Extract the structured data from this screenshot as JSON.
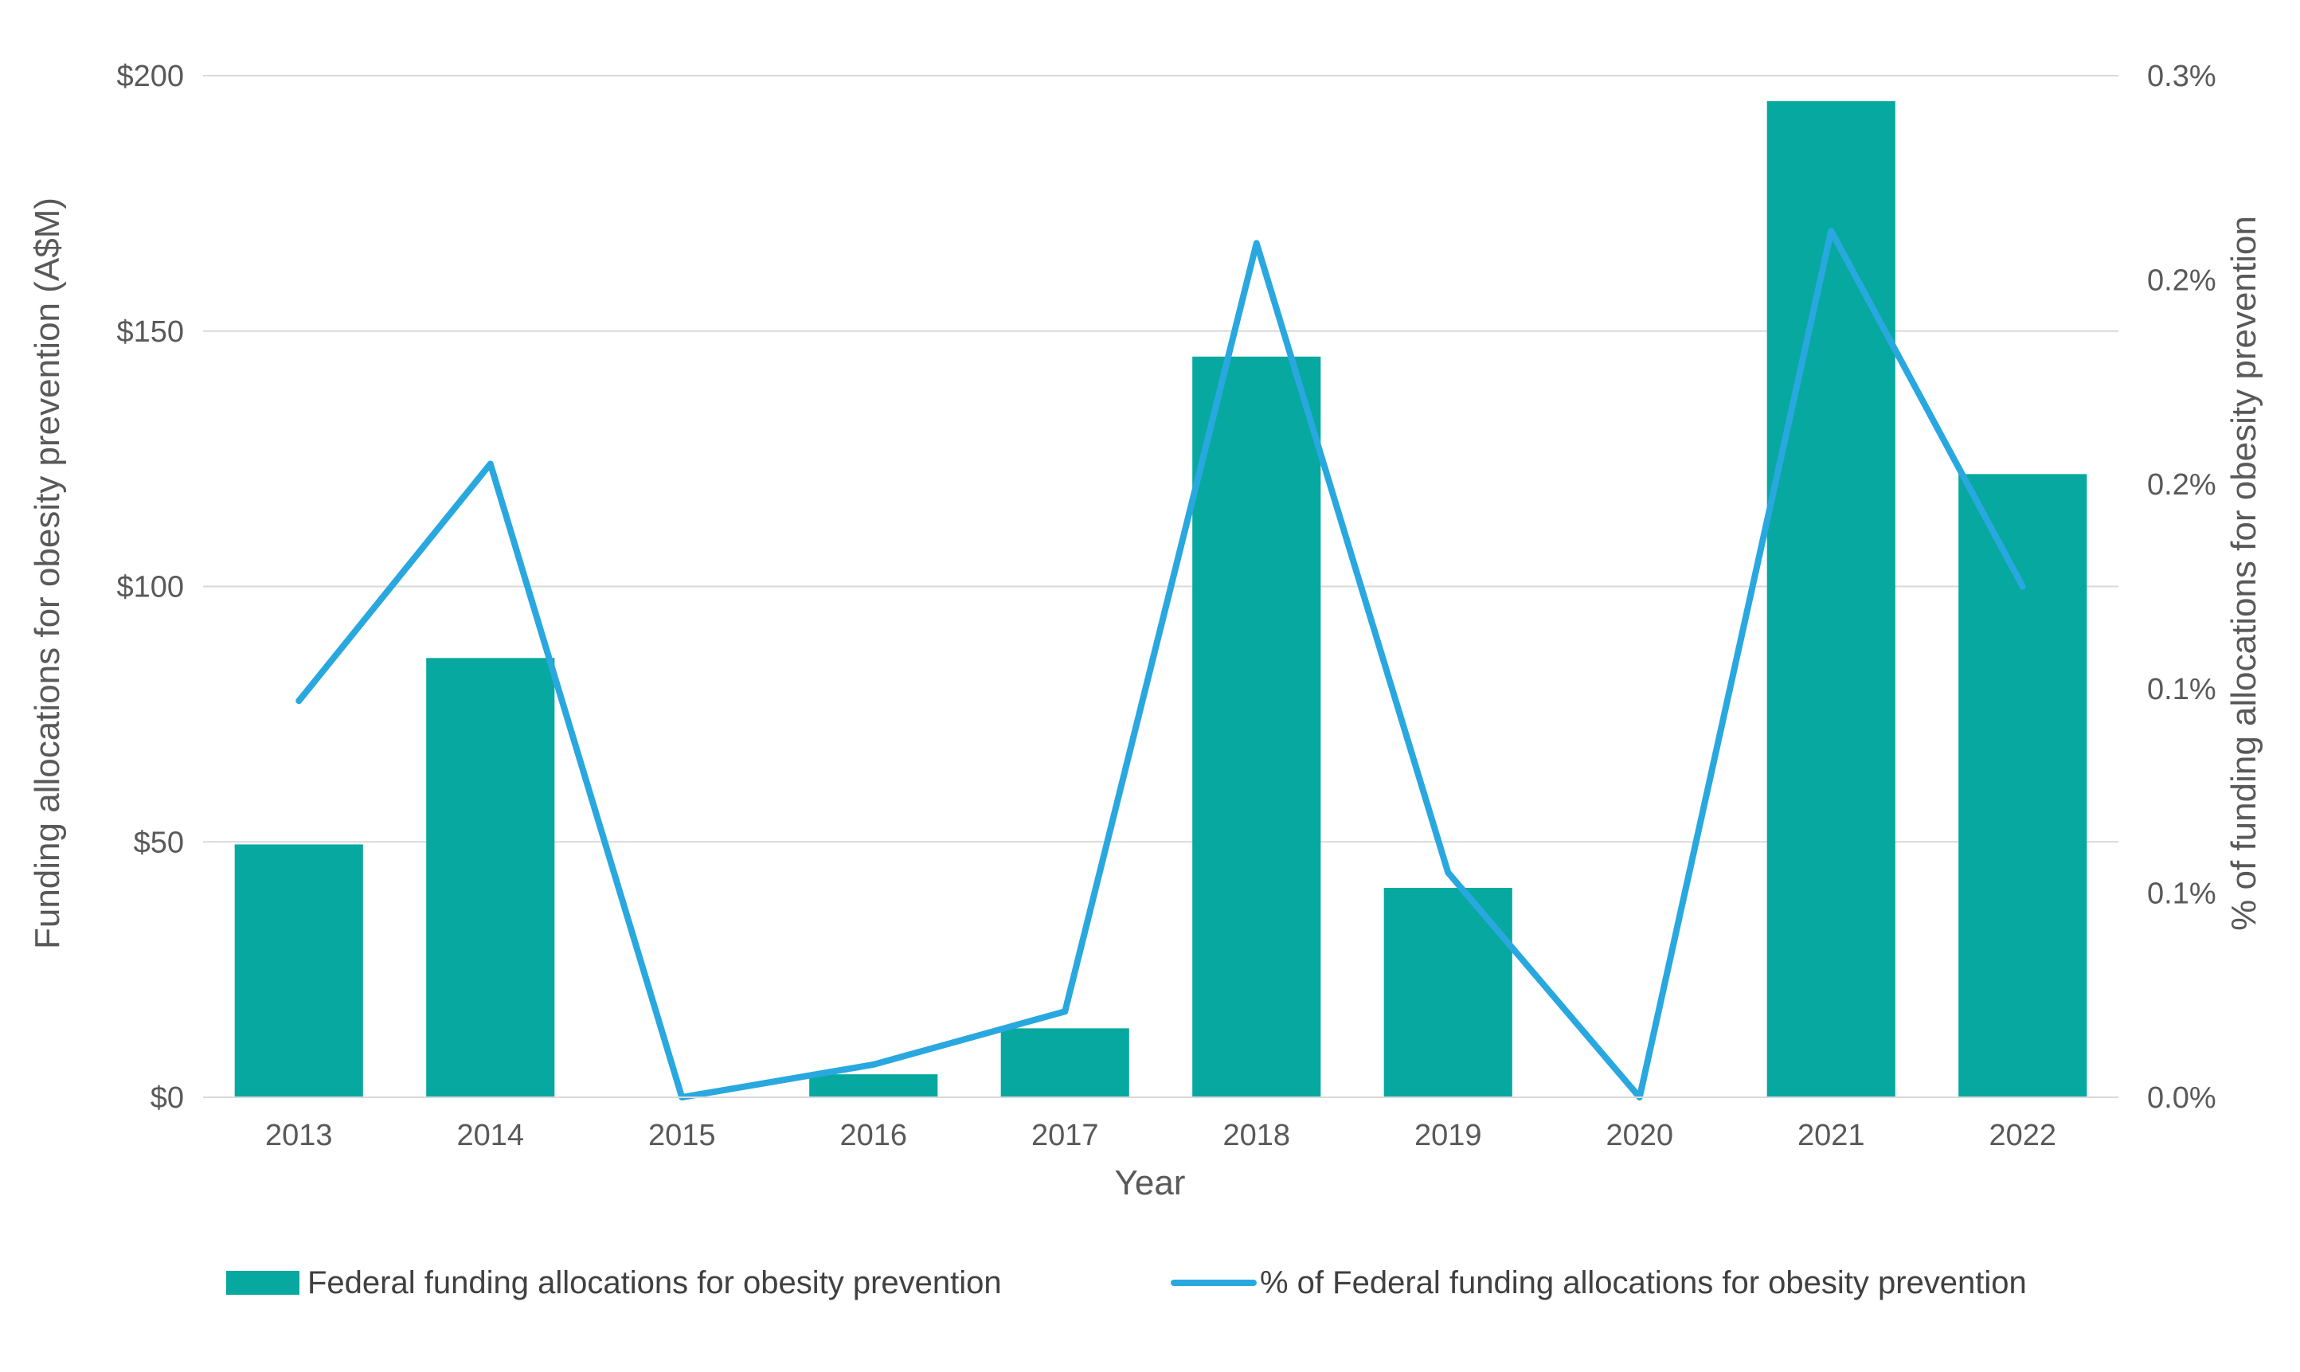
{
  "chart_data": {
    "type": "bar",
    "title": "",
    "xlabel": "Year",
    "ylabel": "Funding allocations for obesity prevention (A$M)",
    "y2label": "% of funding allocations for obesity prevention",
    "categories": [
      "2013",
      "2014",
      "2015",
      "2016",
      "2017",
      "2018",
      "2019",
      "2020",
      "2021",
      "2022"
    ],
    "ylim": [
      0,
      200
    ],
    "y_ticks": [
      "$0",
      "$50",
      "$100",
      "$150",
      "$200"
    ],
    "y2lim": [
      0,
      0.25
    ],
    "y2_ticks": [
      "0.0%",
      "0.1%",
      "0.1%",
      "0.2%",
      "0.2%",
      "0.3%"
    ],
    "grid": true,
    "legend_position": "bottom",
    "series": [
      {
        "name": "Federal funding allocations for obesity prevention",
        "type": "bar",
        "axis": "left",
        "color": "#07A8A0",
        "values": [
          49.5,
          86,
          0,
          4.5,
          13.5,
          145,
          41,
          0,
          195,
          122
        ]
      },
      {
        "name": "% of Federal funding allocations for obesity prevention",
        "type": "line",
        "axis": "right",
        "color": "#29A8E0",
        "values": [
          0.097,
          0.155,
          0.0,
          0.008,
          0.021,
          0.209,
          0.055,
          0.0,
          0.212,
          0.125
        ]
      }
    ]
  }
}
